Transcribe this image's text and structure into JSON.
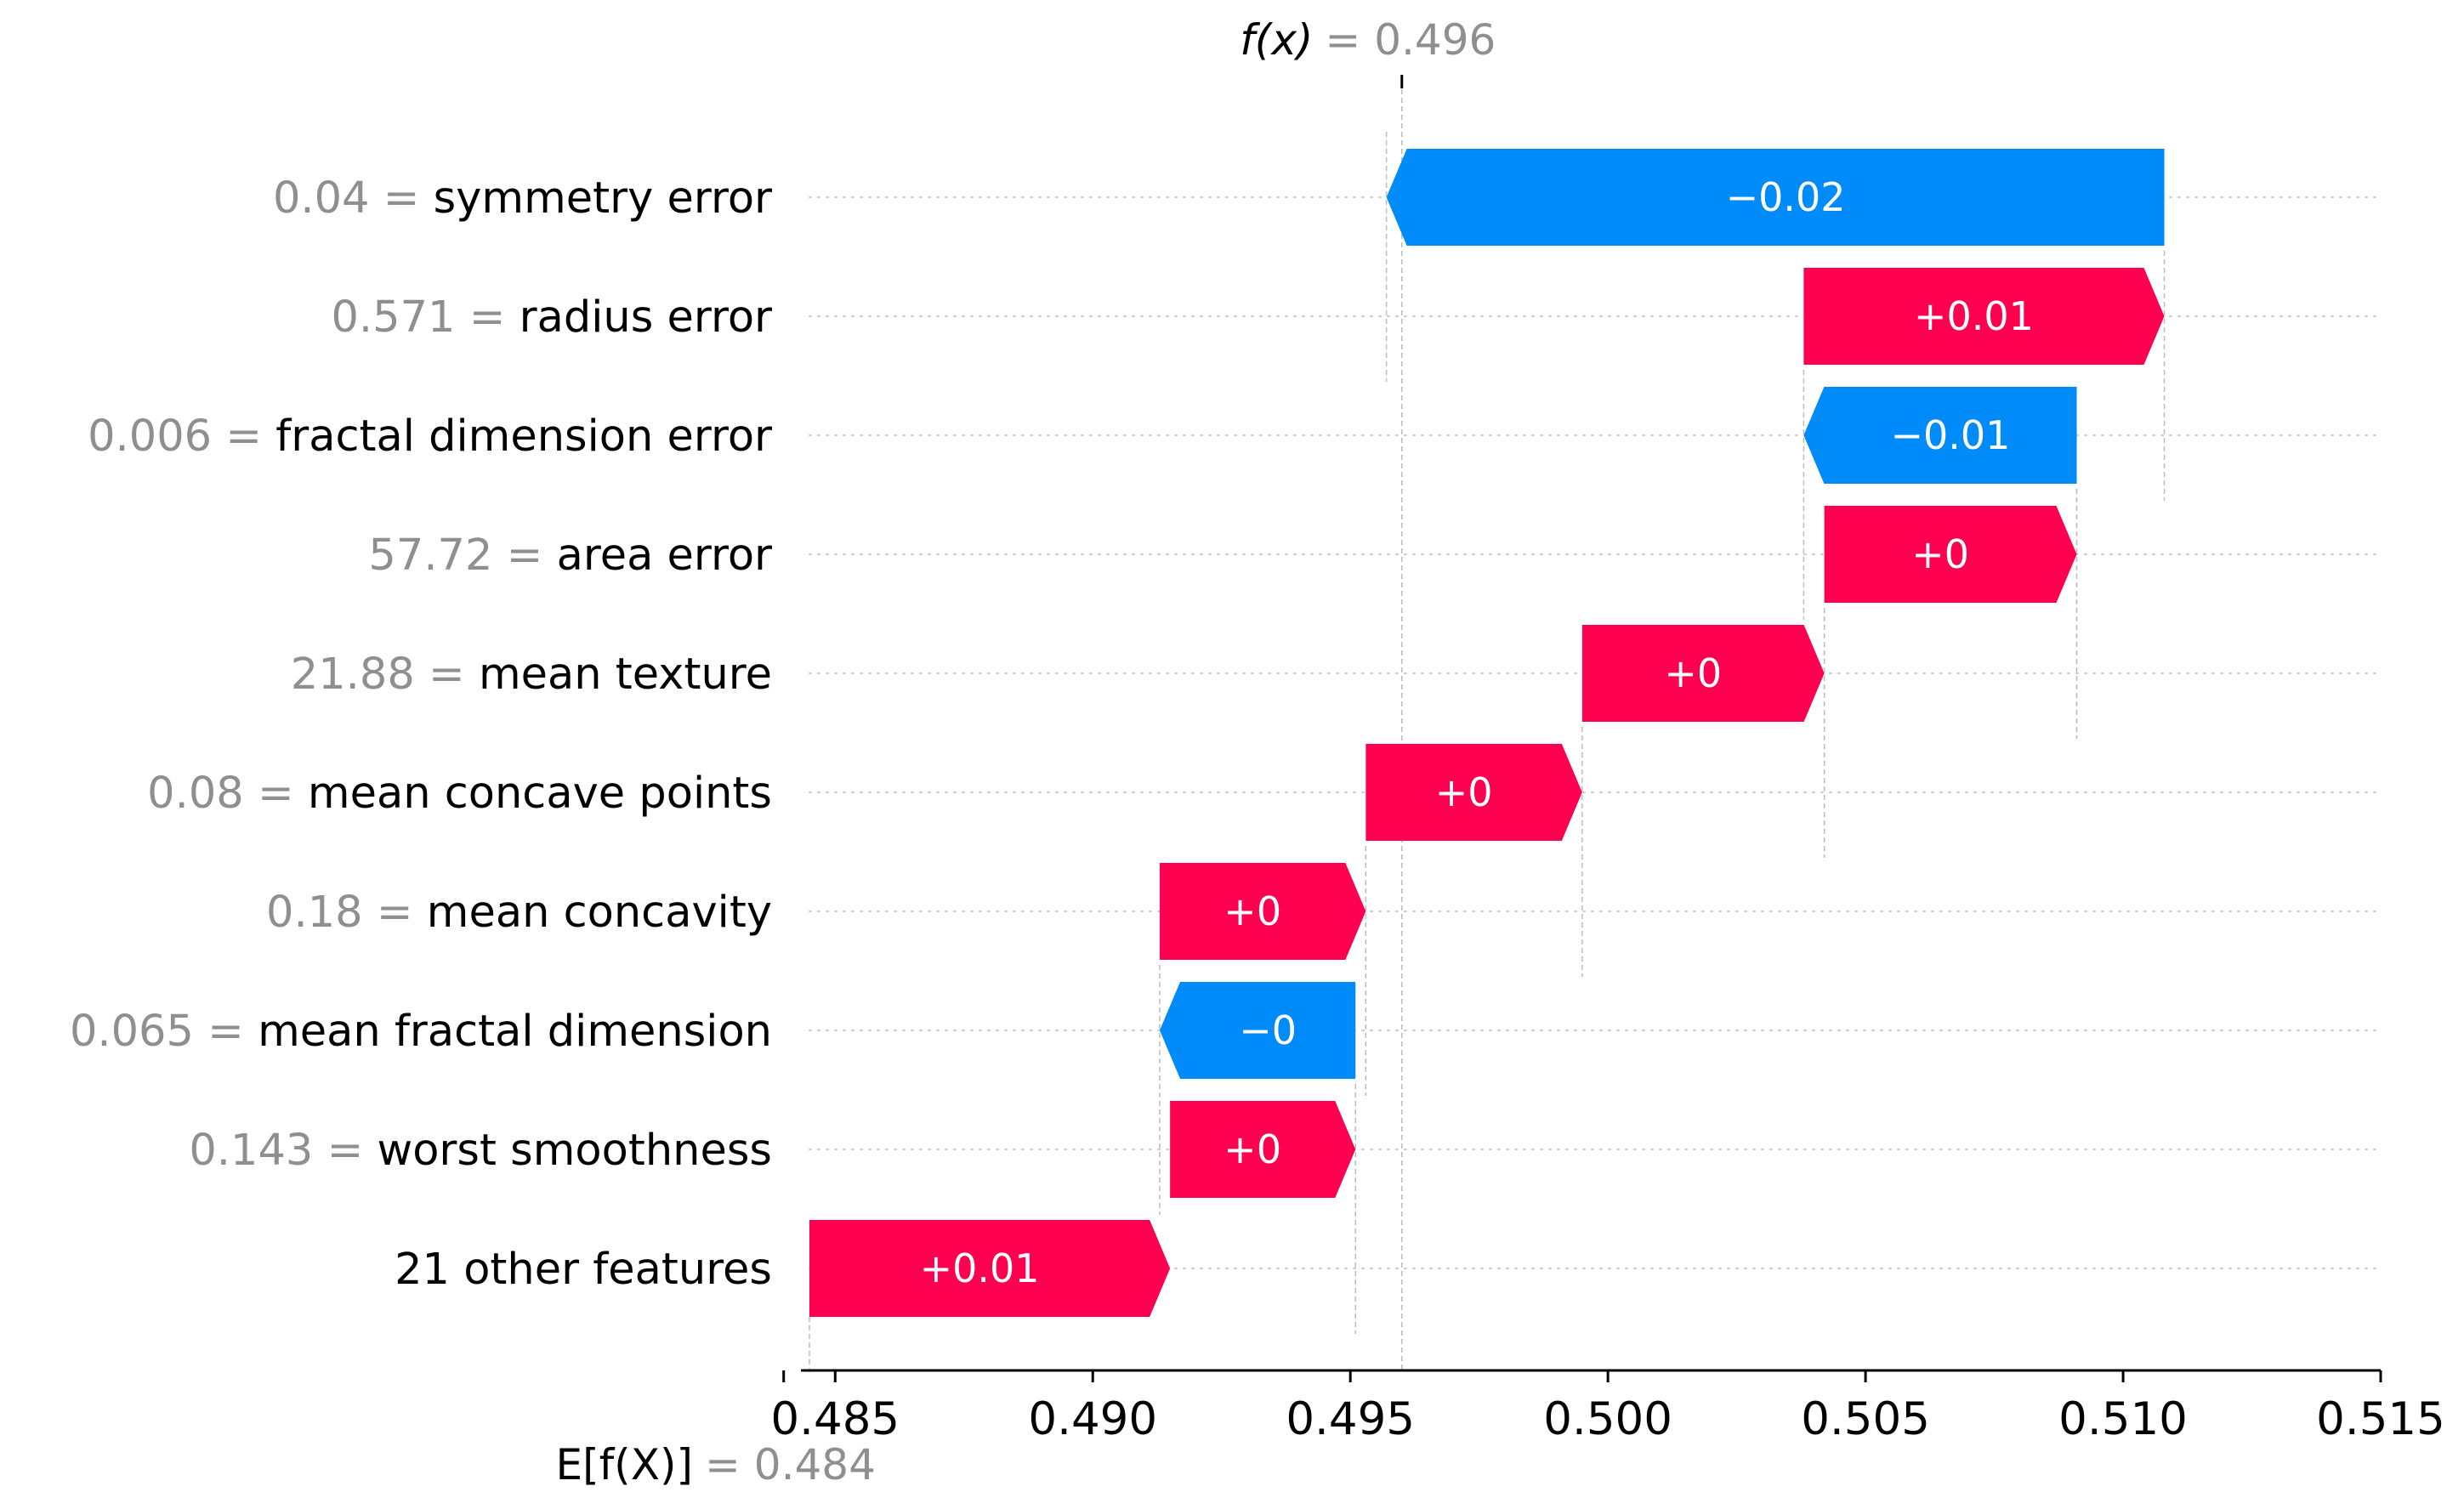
{
  "chart_data": {
    "type": "waterfall",
    "title": "",
    "base_value": 0.484,
    "output_value": 0.496,
    "base_label_main": "E[f(X)]",
    "base_label_value": "= 0.484",
    "output_label_main": "f(x)",
    "output_label_value": "= 0.496",
    "xlim": [
      0.4845,
      0.515
    ],
    "xticks": [
      0.485,
      0.49,
      0.495,
      0.5,
      0.505,
      0.51,
      0.515
    ],
    "xtick_labels": [
      "0.485",
      "0.490",
      "0.495",
      "0.500",
      "0.505",
      "0.510",
      "0.515"
    ],
    "colors": {
      "positive": "#ff0051",
      "negative": "#008bfb",
      "grid": "#cccccc",
      "guide": "#bbbbbb"
    },
    "features": [
      {
        "value_text": "0.04",
        "name": "symmetry error",
        "start": 0.5108,
        "end": 0.4957,
        "label": "−0.02"
      },
      {
        "value_text": "0.571",
        "name": "radius error",
        "start": 0.5038,
        "end": 0.5108,
        "label": "+0.01"
      },
      {
        "value_text": "0.006",
        "name": "fractal dimension error",
        "start": 0.5091,
        "end": 0.5038,
        "label": "−0.01"
      },
      {
        "value_text": "57.72",
        "name": "area error",
        "start": 0.5042,
        "end": 0.5091,
        "label": "+0"
      },
      {
        "value_text": "21.88",
        "name": "mean texture",
        "start": 0.4995,
        "end": 0.5042,
        "label": "+0"
      },
      {
        "value_text": "0.08",
        "name": "mean concave points",
        "start": 0.4953,
        "end": 0.4995,
        "label": "+0"
      },
      {
        "value_text": "0.18",
        "name": "mean concavity",
        "start": 0.4913,
        "end": 0.4953,
        "label": "+0"
      },
      {
        "value_text": "0.065",
        "name": "mean fractal dimension",
        "start": 0.4951,
        "end": 0.4913,
        "label": "−0"
      },
      {
        "value_text": "0.143",
        "name": "worst smoothness",
        "start": 0.4915,
        "end": 0.4951,
        "label": "+0"
      },
      {
        "value_text": "",
        "name": "21 other features",
        "start": 0.4845,
        "end": 0.4915,
        "label": "+0.01"
      }
    ]
  }
}
